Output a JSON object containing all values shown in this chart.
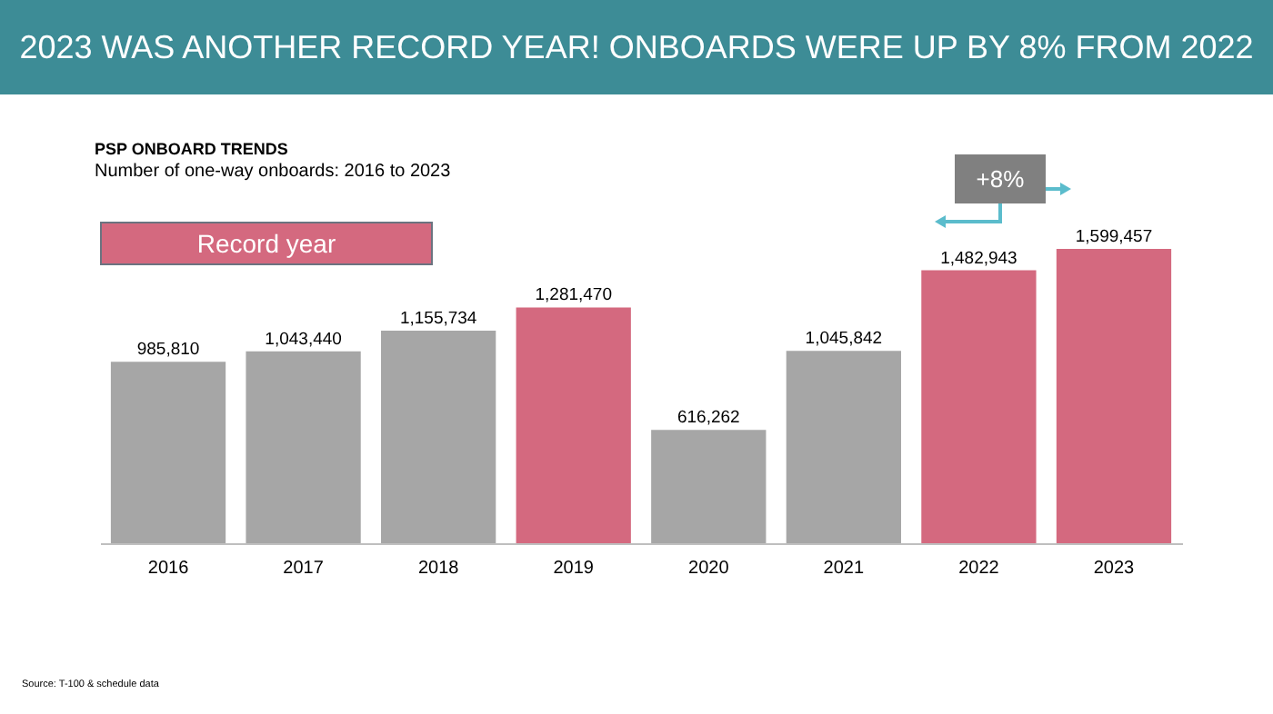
{
  "chart_data": {
    "type": "bar",
    "title": "2023 WAS ANOTHER RECORD YEAR! ONBOARDS WERE UP BY 8% FROM 2022",
    "subtitle": "PSP ONBOARD TRENDS",
    "annotations": [
      "Number of one-way onboards: 2016 to 2023",
      "Record year",
      "+8%",
      "Source: T-100 & schedule data"
    ],
    "categories": [
      "2016",
      "2017",
      "2018",
      "2019",
      "2020",
      "2021",
      "2022",
      "2023"
    ],
    "values": [
      985810,
      1043440,
      1155734,
      1281470,
      616262,
      1045842,
      1482943,
      1599457
    ],
    "colors": [
      "#a6a6a6",
      "#a6a6a6",
      "#a6a6a6",
      "#d4697f",
      "#a6a6a6",
      "#a6a6a6",
      "#d4697f",
      "#d4697f"
    ],
    "value_labels": [
      "985,810",
      "1,043,440",
      "1,155,734",
      "1,281,470",
      "616,262",
      "1,045,842",
      "1,482,943",
      "1,599,457"
    ],
    "grid": false
  }
}
